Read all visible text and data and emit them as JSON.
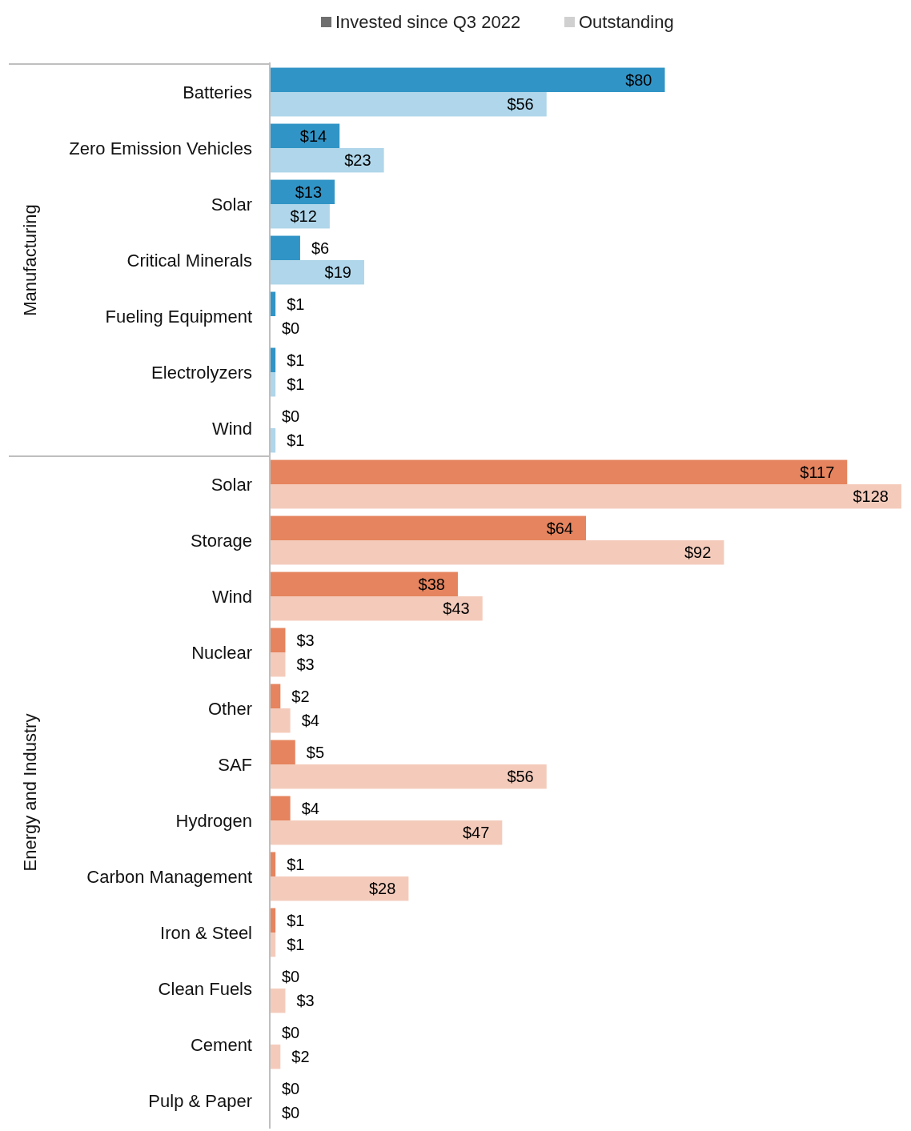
{
  "chart_data": {
    "type": "bar",
    "orientation": "horizontal",
    "legend": "top",
    "tick_labels": "y",
    "categories": [
      "Batteries",
      "Zero Emission Vehicles",
      "Solar",
      "Critical Minerals",
      "Fueling Equipment",
      "Electrolyzers",
      "Wind",
      "Solar",
      "Storage",
      "Wind",
      "Nuclear",
      "Other",
      "SAF",
      "Hydrogen",
      "Carbon Management",
      "Iron & Steel",
      "Clean Fuels",
      "Cement",
      "Pulp & Paper"
    ],
    "series": [
      {
        "name": "Invested since Q3 2022",
        "color": "#6f6f6f",
        "colors": [
          "#3194c6",
          "#3194c6",
          "#3194c6",
          "#3194c6",
          "#3194c6",
          "#3194c6",
          "#3194c6",
          "#e5845e",
          "#e5845e",
          "#e5845e",
          "#e5845e",
          "#e5845e",
          "#e5845e",
          "#e5845e",
          "#e5845e",
          "#e5845e",
          "#e5845e",
          "#e5845e",
          "#e5845e"
        ],
        "values": [
          80,
          14,
          13,
          6,
          1,
          1,
          0,
          117,
          64,
          38,
          3,
          2,
          5,
          4,
          1,
          1,
          0,
          0,
          0
        ],
        "value_labels": [
          "$80",
          "$14",
          "$13",
          "$6",
          "$1",
          "$1",
          "$0",
          "$117",
          "$64",
          "$38",
          "$3",
          "$2",
          "$5",
          "$4",
          "$1",
          "$1",
          "$0",
          "$0",
          "$0"
        ]
      },
      {
        "name": "Outstanding",
        "color": "#d0d0d0",
        "colors": [
          "#afd6ea",
          "#afd6ea",
          "#afd6ea",
          "#afd6ea",
          "#afd6ea",
          "#afd6ea",
          "#afd6ea",
          "#f4cbbb",
          "#f4cbbb",
          "#f4cbbb",
          "#f4cbbb",
          "#f4cbbb",
          "#f4cbbb",
          "#f4cbbb",
          "#f4cbbb",
          "#f4cbbb",
          "#f4cbbb",
          "#f4cbbb",
          "#f4cbbb"
        ],
        "values": [
          56,
          23,
          12,
          19,
          0,
          1,
          1,
          128,
          92,
          43,
          3,
          4,
          56,
          47,
          28,
          1,
          3,
          2,
          0
        ],
        "value_labels": [
          "$56",
          "$23",
          "$12",
          "$19",
          "$0",
          "$1",
          "$1",
          "$128",
          "$92",
          "$43",
          "$3",
          "$4",
          "$56",
          "$47",
          "$28",
          "$1",
          "$3",
          "$2",
          "$0"
        ]
      }
    ],
    "annotations": [
      "Manufacturing",
      "Energy and Industry"
    ]
  }
}
